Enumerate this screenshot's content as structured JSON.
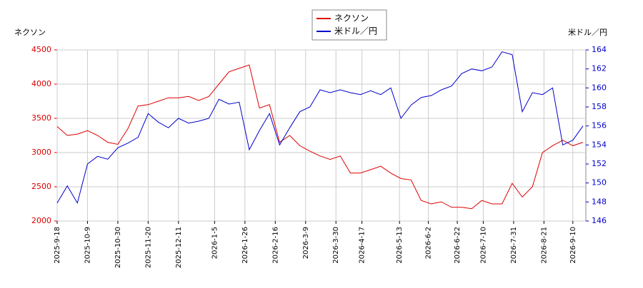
{
  "chart_data": {
    "type": "line",
    "y_label": "ネクソン",
    "y2_label": "米ドル／円",
    "x": [
      "2025-9-18",
      "2025-9-25",
      "2025-10-2",
      "2025-10-9",
      "2025-10-16",
      "2025-10-23",
      "2025-10-30",
      "2025-11-6",
      "2025-11-13",
      "2025-11-20",
      "2025-11-27",
      "2025-12-4",
      "2025-12-11",
      "2025-12-18",
      "2025-12-25",
      "2026-1-1",
      "2026-1-8",
      "2026-1-15",
      "2026-1-22",
      "2026-1-29",
      "2026-2-5",
      "2026-2-12",
      "2026-2-19",
      "2026-2-26",
      "2026-3-5",
      "2026-3-12",
      "2026-3-19",
      "2026-3-26",
      "2026-4-2",
      "2026-4-9",
      "2026-4-16",
      "2026-4-23",
      "2026-4-30",
      "2026-5-7",
      "2026-5-14",
      "2026-5-21",
      "2026-5-28",
      "2026-6-4",
      "2026-6-11",
      "2026-6-18",
      "2026-6-25",
      "2026-7-2",
      "2026-7-9",
      "2026-7-16",
      "2026-7-23",
      "2026-7-30",
      "2026-8-6",
      "2026-8-13",
      "2026-8-20",
      "2026-8-27",
      "2026-9-3",
      "2026-9-10",
      "2026-9-17"
    ],
    "series": [
      {
        "name": "ネクソン",
        "color": "#dd0000",
        "values": [
          3380,
          3250,
          3270,
          3320,
          3250,
          3150,
          3120,
          3350,
          3680,
          3700,
          3750,
          3800,
          3800,
          3820,
          3760,
          3820,
          4000,
          4180,
          4230,
          4280,
          3650,
          3700,
          3150,
          3250,
          3100,
          3020,
          2950,
          2900,
          2950,
          2700,
          2700,
          2750,
          2800,
          2700,
          2620,
          2600,
          2300,
          2250,
          2280,
          2200,
          2200,
          2180,
          2300,
          2250,
          2250,
          2550,
          2350,
          2500,
          3000,
          3100,
          3180,
          3100,
          3150
        ]
      },
      {
        "name": "米ドル／円",
        "color": "#0000cc",
        "axis": "y2",
        "values": [
          147.9,
          149.7,
          147.9,
          152,
          152.8,
          152.5,
          153.7,
          154.2,
          154.8,
          157.3,
          156.4,
          155.8,
          156.8,
          156.3,
          156.5,
          156.8,
          158.8,
          158.3,
          158.5,
          153.5,
          155.5,
          157.3,
          154,
          155.8,
          157.5,
          158,
          159.8,
          159.5,
          159.8,
          159.5,
          159.3,
          159.7,
          159.3,
          160,
          156.8,
          158.2,
          159,
          159.2,
          159.8,
          160.2,
          161.5,
          162,
          161.8,
          162.2,
          163.8,
          163.5,
          157.5,
          159.5,
          159.3,
          160,
          154,
          154.5,
          156
        ]
      }
    ],
    "xlim": [
      "2025-9-18",
      "2026-9-19"
    ],
    "xticks": [
      "2025-9-18",
      "2025-10-9",
      "2025-10-30",
      "2025-11-20",
      "2025-12-11",
      "2026-1-5",
      "2026-1-26",
      "2026-2-16",
      "2026-3-9",
      "2026-3-30",
      "2026-4-17",
      "2026-5-13",
      "2026-6-2",
      "2026-6-22",
      "2026-7-10",
      "2026-7-31",
      "2026-8-21",
      "2026-9-10"
    ],
    "ylim": [
      2000,
      4500
    ],
    "yticks": [
      2000,
      2500,
      3000,
      3500,
      4000,
      4500
    ],
    "y2lim": [
      146,
      164
    ],
    "y2ticks": [
      146,
      148,
      150,
      152,
      154,
      156,
      158,
      160,
      162,
      164
    ],
    "grid": true
  }
}
